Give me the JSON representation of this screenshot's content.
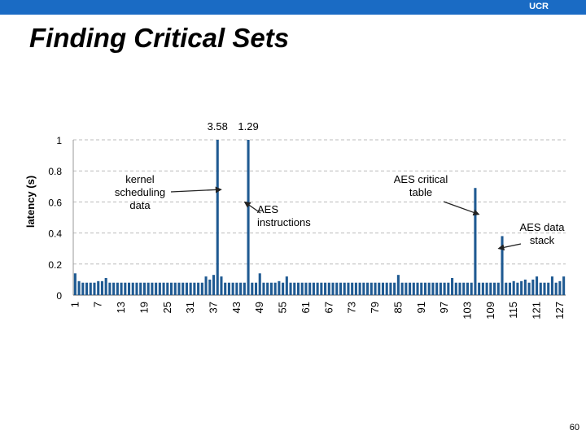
{
  "header": {
    "org": "UCR"
  },
  "slide": {
    "title": "Finding Critical Sets",
    "page_number": "60"
  },
  "colors": {
    "header_bar": "#1a6bc4",
    "bar": "#1f5a92",
    "grid": "#bbbbbb"
  },
  "chart_data": {
    "type": "bar",
    "title": "",
    "xlabel": "",
    "ylabel": "latency (s)",
    "ylim": [
      0,
      1
    ],
    "yticks": [
      0,
      0.2,
      0.4,
      0.6,
      0.8,
      1
    ],
    "ytick_labels": [
      "0",
      "0.2",
      "0.4",
      "0.6",
      "0.8",
      "1"
    ],
    "grid": true,
    "categories": [
      "1",
      "2",
      "3",
      "4",
      "5",
      "6",
      "7",
      "8",
      "9",
      "10",
      "11",
      "12",
      "13",
      "14",
      "15",
      "16",
      "17",
      "18",
      "19",
      "20",
      "21",
      "22",
      "23",
      "24",
      "25",
      "26",
      "27",
      "28",
      "29",
      "30",
      "31",
      "32",
      "33",
      "34",
      "35",
      "36",
      "37",
      "38",
      "39",
      "40",
      "41",
      "42",
      "43",
      "44",
      "45",
      "46",
      "47",
      "48",
      "49",
      "50",
      "51",
      "52",
      "53",
      "54",
      "55",
      "56",
      "57",
      "58",
      "59",
      "60",
      "61",
      "62",
      "63",
      "64",
      "65",
      "66",
      "67",
      "68",
      "69",
      "70",
      "71",
      "72",
      "73",
      "74",
      "75",
      "76",
      "77",
      "78",
      "79",
      "80",
      "81",
      "82",
      "83",
      "84",
      "85",
      "86",
      "87",
      "88",
      "89",
      "90",
      "91",
      "92",
      "93",
      "94",
      "95",
      "96",
      "97",
      "98",
      "99",
      "100",
      "101",
      "102",
      "103",
      "104",
      "105",
      "106",
      "107",
      "108",
      "109",
      "110",
      "111",
      "112",
      "113",
      "114",
      "115",
      "116",
      "117",
      "118",
      "119",
      "120",
      "121",
      "122",
      "123",
      "124",
      "125",
      "126",
      "127",
      "128"
    ],
    "xtick_labels": [
      "1",
      "7",
      "13",
      "19",
      "25",
      "31",
      "37",
      "43",
      "49",
      "55",
      "61",
      "67",
      "73",
      "79",
      "85",
      "91",
      "97",
      "103",
      "109",
      "115",
      "121",
      "127"
    ],
    "values": [
      0.14,
      0.09,
      0.08,
      0.08,
      0.08,
      0.08,
      0.09,
      0.09,
      0.11,
      0.08,
      0.08,
      0.08,
      0.08,
      0.08,
      0.08,
      0.08,
      0.08,
      0.08,
      0.08,
      0.08,
      0.08,
      0.08,
      0.08,
      0.08,
      0.08,
      0.08,
      0.08,
      0.08,
      0.08,
      0.08,
      0.08,
      0.08,
      0.08,
      0.08,
      0.12,
      0.1,
      0.13,
      1.0,
      0.12,
      0.08,
      0.08,
      0.08,
      0.08,
      0.08,
      0.08,
      1.0,
      0.08,
      0.08,
      0.14,
      0.08,
      0.08,
      0.08,
      0.08,
      0.09,
      0.08,
      0.12,
      0.08,
      0.08,
      0.08,
      0.08,
      0.08,
      0.08,
      0.08,
      0.08,
      0.08,
      0.08,
      0.08,
      0.08,
      0.08,
      0.08,
      0.08,
      0.08,
      0.08,
      0.08,
      0.08,
      0.08,
      0.08,
      0.08,
      0.08,
      0.08,
      0.08,
      0.08,
      0.08,
      0.08,
      0.13,
      0.08,
      0.08,
      0.08,
      0.08,
      0.08,
      0.08,
      0.08,
      0.08,
      0.08,
      0.08,
      0.08,
      0.08,
      0.08,
      0.11,
      0.08,
      0.08,
      0.08,
      0.08,
      0.08,
      0.69,
      0.08,
      0.08,
      0.08,
      0.08,
      0.08,
      0.08,
      0.38,
      0.08,
      0.08,
      0.09,
      0.08,
      0.09,
      0.1,
      0.08,
      0.1,
      0.12,
      0.08,
      0.08,
      0.08,
      0.12,
      0.08,
      0.09,
      0.12
    ],
    "top_labels": [
      {
        "bar": 38,
        "text": "3.58"
      },
      {
        "bar": 46,
        "text": "1.29"
      }
    ],
    "annotations": [
      {
        "lines": [
          "kernel",
          "scheduling",
          "data"
        ],
        "points_to_bar": 38,
        "target_value": 0.68
      },
      {
        "lines": [
          "AES",
          "instructions"
        ],
        "points_to_bar": 46,
        "target_value": 0.6
      },
      {
        "lines": [
          "AES critical",
          "table"
        ],
        "points_to_bar": 105,
        "target_value": 0.52
      },
      {
        "lines": [
          "AES data",
          "stack"
        ],
        "points_to_bar": 112,
        "target_value": 0.3
      }
    ]
  }
}
